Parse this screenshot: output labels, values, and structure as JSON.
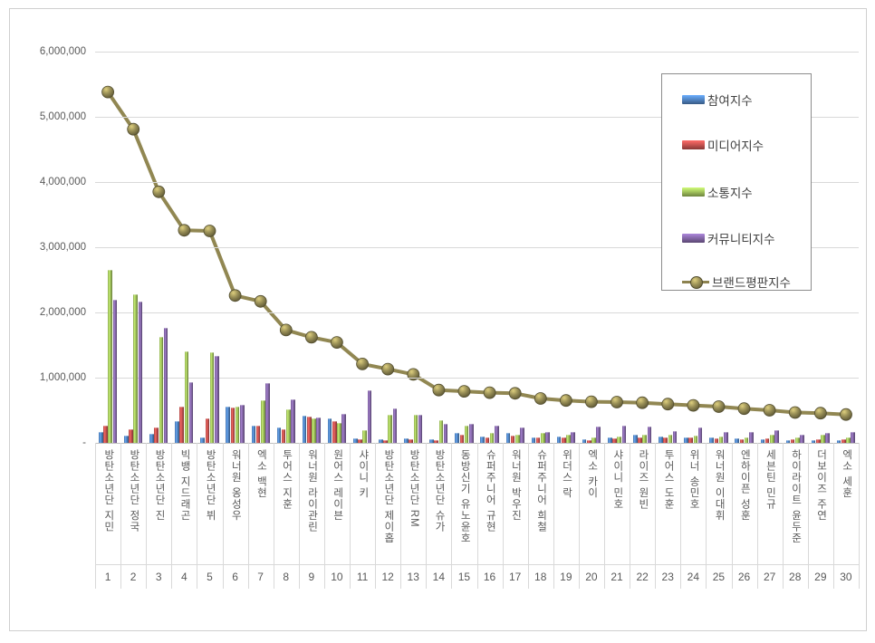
{
  "chart_data": {
    "type": "bar+line",
    "title": "",
    "categories": [
      "방탄소년단 지민",
      "방탄소년단 정국",
      "방탄소년단 진",
      "빅뱅 지드래곤",
      "방탄소년단 뷔",
      "워너원 옹성우",
      "엑소 백현",
      "투어스 지훈",
      "워너원 라이관린",
      "원어스 레이븐",
      "샤이니 키",
      "방탄소년단 제이홉",
      "방탄소년단 RM",
      "방탄소년단 슈가",
      "동방신기 유노윤호",
      "슈퍼주니어 규현",
      "워너원 박우진",
      "슈퍼주니어 희철",
      "위더스 락",
      "엑소 카이",
      "샤이니 민호",
      "라이즈 원빈",
      "투어스 도훈",
      "위너 송민호",
      "워너원 이대휘",
      "엔하이픈 성훈",
      "세븐틴 민규",
      "하이라이트 윤두준",
      "더보이즈 주연",
      "엑소 세훈"
    ],
    "rank_labels": [
      "1",
      "2",
      "3",
      "4",
      "5",
      "6",
      "7",
      "8",
      "9",
      "10",
      "11",
      "12",
      "13",
      "14",
      "15",
      "16",
      "17",
      "18",
      "19",
      "20",
      "21",
      "22",
      "23",
      "24",
      "25",
      "26",
      "27",
      "28",
      "29",
      "30"
    ],
    "y_axis": {
      "min": 0,
      "max": 6000000,
      "tick_step": 1000000,
      "tick_labels_top_to_bottom": [
        "6,000,000",
        "5,000,000",
        "4,000,000",
        "3,000,000",
        "2,000,000",
        "1,000,000",
        "-"
      ],
      "grid": true
    },
    "bar_series": [
      {
        "name": "참여지수",
        "color": "#4f81bd",
        "values": [
          170000,
          110000,
          140000,
          330000,
          90000,
          560000,
          270000,
          240000,
          420000,
          380000,
          70000,
          50000,
          70000,
          50000,
          150000,
          100000,
          150000,
          90000,
          100000,
          50000,
          90000,
          120000,
          100000,
          90000,
          90000,
          70000,
          60000,
          40000,
          40000,
          40000
        ]
      },
      {
        "name": "미디어지수",
        "color": "#c0504d",
        "values": [
          270000,
          210000,
          240000,
          550000,
          380000,
          540000,
          260000,
          210000,
          400000,
          340000,
          60000,
          40000,
          50000,
          40000,
          130000,
          90000,
          110000,
          80000,
          80000,
          40000,
          70000,
          90000,
          90000,
          80000,
          70000,
          60000,
          70000,
          50000,
          60000,
          50000
        ]
      },
      {
        "name": "소통지수",
        "color": "#9bbb59",
        "values": [
          2650000,
          2280000,
          1630000,
          1400000,
          1390000,
          550000,
          650000,
          520000,
          380000,
          310000,
          190000,
          430000,
          430000,
          350000,
          270000,
          150000,
          130000,
          150000,
          120000,
          80000,
          100000,
          130000,
          130000,
          110000,
          100000,
          90000,
          120000,
          80000,
          120000,
          90000
        ]
      },
      {
        "name": "커뮤니티지수",
        "color": "#8064a2",
        "values": [
          2200000,
          2170000,
          1760000,
          930000,
          1330000,
          580000,
          920000,
          670000,
          390000,
          450000,
          810000,
          530000,
          430000,
          290000,
          290000,
          260000,
          240000,
          160000,
          170000,
          250000,
          270000,
          250000,
          180000,
          240000,
          160000,
          160000,
          190000,
          130000,
          150000,
          170000
        ]
      }
    ],
    "line_series": {
      "name": "브랜드평판지수",
      "color": "#948a54",
      "values": [
        5380000,
        4810000,
        3850000,
        3260000,
        3250000,
        2260000,
        2170000,
        1730000,
        1620000,
        1540000,
        1210000,
        1130000,
        1050000,
        810000,
        790000,
        770000,
        760000,
        680000,
        650000,
        630000,
        625000,
        615000,
        595000,
        575000,
        555000,
        525000,
        500000,
        465000,
        455000,
        435000
      ]
    },
    "legend": {
      "position": "top-right",
      "entries": [
        "참여지수",
        "미디어지수",
        "소통지수",
        "커뮤니티지수",
        "브랜드평판지수"
      ]
    }
  }
}
